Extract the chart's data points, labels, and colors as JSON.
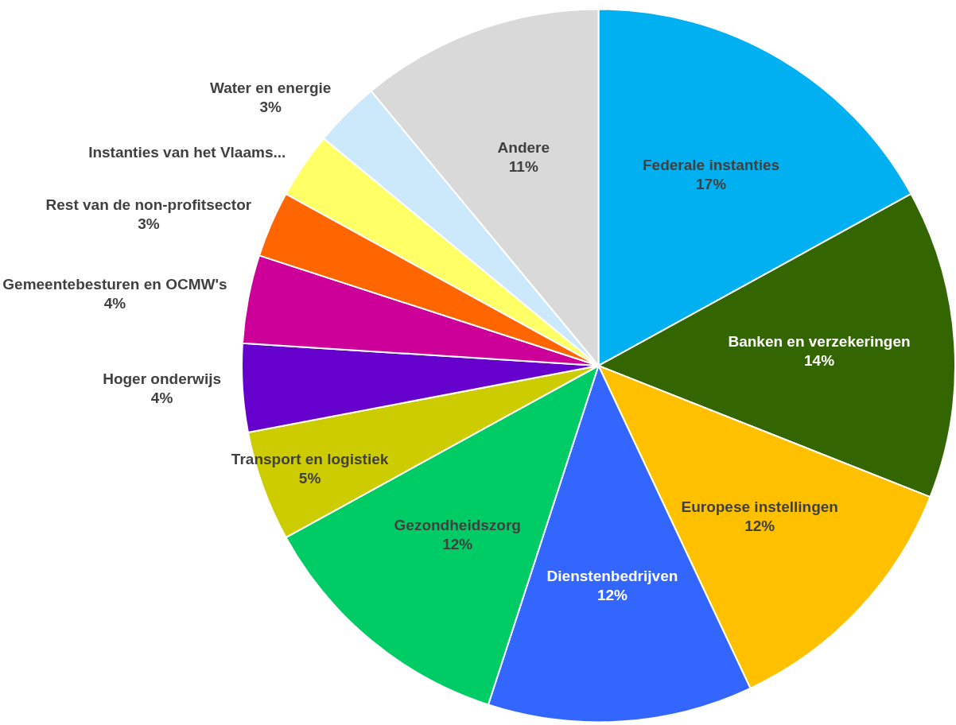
{
  "chart_data": {
    "type": "pie",
    "categories": [
      "Federale instanties",
      "Banken en verzekeringen",
      "Europese instellingen",
      "Dienstenbedrijven",
      "Gezondheidszorg",
      "Transport en logistiek",
      "Hoger onderwijs",
      "Gemeentebesturen en OCMW's",
      "Rest van de non-profitsector",
      "Instanties van het Vlaams...",
      "Water en energie",
      "Andere"
    ],
    "values": [
      17,
      14,
      12,
      12,
      12,
      5,
      4,
      4,
      3,
      3,
      3,
      11
    ],
    "colors": [
      "#00b0f0",
      "#336600",
      "#ffc000",
      "#3366ff",
      "#00cc66",
      "#cccc00",
      "#6600cc",
      "#cc0099",
      "#ff6600",
      "#ffff66",
      "#cce9fb",
      "#d9d9d9"
    ],
    "value_labels": [
      "17%",
      "14%",
      "12%",
      "12%",
      "12%",
      "5%",
      "4%",
      "4%",
      "3%",
      null,
      "3%",
      "11%"
    ],
    "legend": false
  }
}
